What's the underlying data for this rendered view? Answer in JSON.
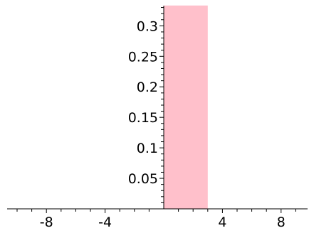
{
  "chart_data": {
    "type": "bar",
    "title": "",
    "xlabel": "",
    "ylabel": "",
    "xlim": [
      -10.5,
      10.5
    ],
    "ylim": [
      0,
      0.333
    ],
    "x_ticks": [
      {
        "value": -8,
        "label": "-8"
      },
      {
        "value": -4,
        "label": "-4"
      },
      {
        "value": 4,
        "label": "4"
      },
      {
        "value": 8,
        "label": "8"
      }
    ],
    "y_ticks": [
      {
        "value": 0.05,
        "label": "0.05"
      },
      {
        "value": 0.1,
        "label": "0.1"
      },
      {
        "value": 0.15,
        "label": "0.15"
      },
      {
        "value": 0.2,
        "label": "0.2"
      },
      {
        "value": 0.25,
        "label": "0.25"
      },
      {
        "value": 0.3,
        "label": "0.3"
      }
    ],
    "x_minor_step": 1,
    "y_minor_step": 0.01,
    "bars": [
      {
        "x_start": 0,
        "x_end": 3,
        "value": 0.3333
      }
    ],
    "bar_color": "#ffc0cb",
    "axis_color": "#000000",
    "grid": false,
    "legend": "none"
  }
}
